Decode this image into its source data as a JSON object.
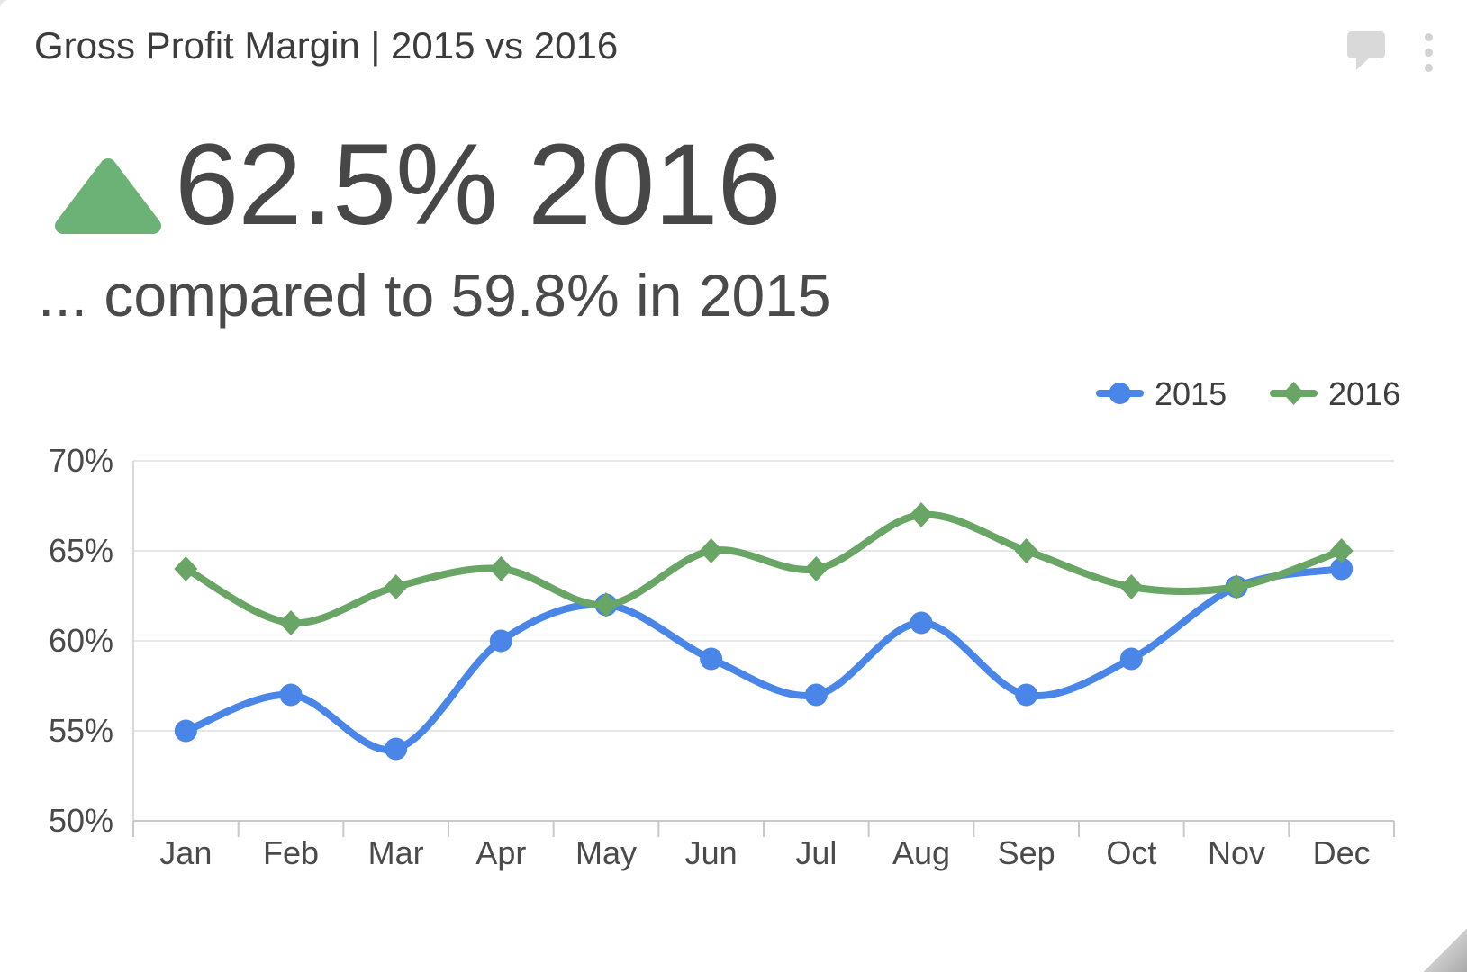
{
  "header": {
    "title": "Gross Profit Margin | 2015 vs 2016",
    "icons": [
      {
        "name": "comment-icon",
        "color": "#d9d9d9"
      },
      {
        "name": "kebab-menu-icon",
        "color": "#d2d2d2"
      }
    ]
  },
  "kpi": {
    "trend": "up",
    "trend_color": "#6cb175",
    "value": "62.5%",
    "year": "2016",
    "comparison": "... compared to 59.8% in 2015"
  },
  "chart_data": {
    "type": "line",
    "title": "",
    "xlabel": "",
    "ylabel": "",
    "x_categories": [
      "Jan",
      "Feb",
      "Mar",
      "Apr",
      "May",
      "Jun",
      "Jul",
      "Aug",
      "Sep",
      "Oct",
      "Nov",
      "Dec"
    ],
    "series": [
      {
        "name": "2015",
        "color": "#4a86e8",
        "marker": "circle",
        "values": [
          55,
          57,
          54,
          60,
          62,
          59,
          57,
          61,
          57,
          59,
          63,
          64
        ]
      },
      {
        "name": "2016",
        "color": "#69a564",
        "marker": "diamond",
        "values": [
          64,
          61,
          63,
          64,
          62,
          65,
          64,
          67,
          65,
          63,
          63,
          65
        ]
      }
    ],
    "unit": "%",
    "ylim": [
      50,
      70
    ],
    "yticks": [
      70,
      65,
      60,
      55,
      50
    ],
    "ytick_suffix": "%",
    "grid": true,
    "legend_position": "top-right",
    "grid_color": "#e7e7e7",
    "axis_color": "#c9c9c9"
  }
}
